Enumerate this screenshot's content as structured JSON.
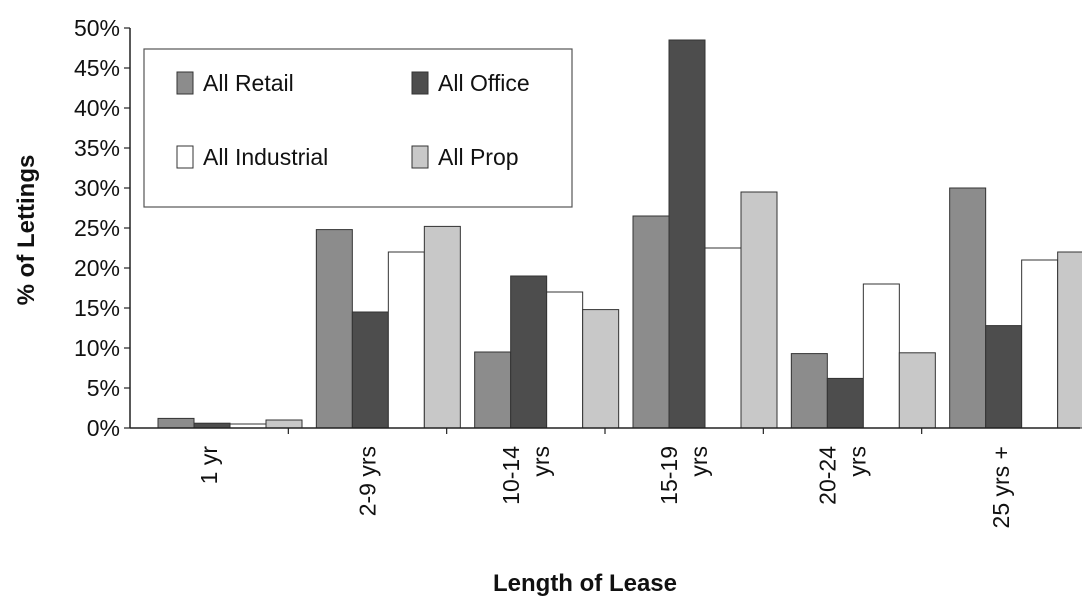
{
  "chart_data": {
    "type": "bar",
    "title": "",
    "xlabel": "Length of Lease",
    "ylabel": "% of Lettings",
    "ylim": [
      0,
      50
    ],
    "yticks": [
      "0%",
      "5%",
      "10%",
      "15%",
      "20%",
      "25%",
      "30%",
      "35%",
      "40%",
      "45%",
      "50%"
    ],
    "categories": [
      [
        "1 yr"
      ],
      [
        "2-9 yrs"
      ],
      [
        "10-14",
        "yrs"
      ],
      [
        "15-19",
        "yrs"
      ],
      [
        "20-24",
        "yrs"
      ],
      [
        "25 yrs +"
      ]
    ],
    "series": [
      {
        "name": "All Retail",
        "values": [
          1.2,
          24.8,
          9.5,
          26.5,
          9.3,
          30.0
        ],
        "color": "#8c8c8c"
      },
      {
        "name": "All Office",
        "values": [
          0.6,
          14.5,
          19.0,
          48.5,
          6.2,
          12.8
        ],
        "color": "#4d4d4d"
      },
      {
        "name": "All Industrial",
        "values": [
          0.5,
          22.0,
          17.0,
          22.5,
          18.0,
          21.0
        ],
        "color": "#ffffff"
      },
      {
        "name": "All Prop",
        "values": [
          1.0,
          25.2,
          14.8,
          29.5,
          9.4,
          22.0
        ],
        "color": "#c8c8c8"
      }
    ],
    "grid": false,
    "legend_position": "top-left"
  }
}
